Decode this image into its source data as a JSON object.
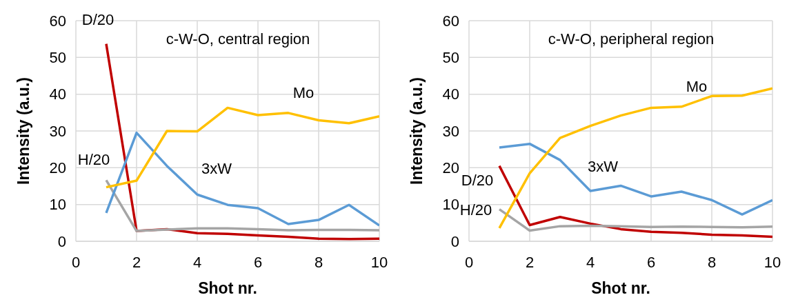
{
  "chart_data": [
    {
      "type": "line",
      "title": "c-W-O, central region",
      "xlabel": "Shot nr.",
      "ylabel": "Intensity (a.u.)",
      "x": [
        1,
        2,
        3,
        4,
        5,
        6,
        7,
        8,
        9,
        10
      ],
      "xlim": [
        0,
        10
      ],
      "xticks": [
        0,
        2,
        4,
        6,
        8,
        10
      ],
      "ylim": [
        0,
        60
      ],
      "yticks": [
        0,
        10,
        20,
        30,
        40,
        50,
        60
      ],
      "grid": true,
      "legend": false,
      "marker": "none",
      "line_style": "solid",
      "series": [
        {
          "name": "D/20",
          "color": "#c00000",
          "values": [
            53.7,
            2.8,
            3.3,
            2.2,
            2.0,
            1.6,
            1.2,
            0.7,
            0.6,
            0.7
          ]
        },
        {
          "name": "H/20",
          "color": "#a5a5a5",
          "values": [
            16.6,
            2.8,
            3.2,
            3.5,
            3.5,
            3.3,
            3.0,
            3.1,
            3.1,
            3.0
          ]
        },
        {
          "name": "3xW",
          "color": "#5b9bd5",
          "values": [
            7.7,
            29.5,
            20.5,
            12.7,
            9.9,
            9.0,
            4.7,
            5.8,
            9.9,
            4.3
          ]
        },
        {
          "name": "Mo",
          "color": "#ffc000",
          "values": [
            14.7,
            16.5,
            30.0,
            29.9,
            36.3,
            34.3,
            34.9,
            32.9,
            32.1,
            34.0
          ]
        }
      ]
    },
    {
      "type": "line",
      "title": "c-W-O, peripheral region",
      "xlabel": "Shot nr.",
      "ylabel": "Intensity (a.u.)",
      "x": [
        1,
        2,
        3,
        4,
        5,
        6,
        7,
        8,
        9,
        10
      ],
      "xlim": [
        0,
        10
      ],
      "xticks": [
        0,
        2,
        4,
        6,
        8,
        10
      ],
      "ylim": [
        0,
        60
      ],
      "yticks": [
        0,
        10,
        20,
        30,
        40,
        50,
        60
      ],
      "grid": true,
      "legend": false,
      "marker": "none",
      "line_style": "solid",
      "series": [
        {
          "name": "D/20",
          "color": "#c00000",
          "values": [
            20.5,
            4.4,
            6.6,
            4.8,
            3.3,
            2.6,
            2.3,
            1.8,
            1.6,
            1.2
          ]
        },
        {
          "name": "H/20",
          "color": "#a5a5a5",
          "values": [
            8.7,
            2.9,
            4.1,
            4.2,
            4.1,
            3.9,
            4.0,
            3.9,
            3.8,
            4.0
          ]
        },
        {
          "name": "3xW",
          "color": "#5b9bd5",
          "values": [
            25.5,
            26.5,
            22.1,
            13.7,
            15.1,
            12.2,
            13.5,
            11.2,
            7.3,
            11.2
          ]
        },
        {
          "name": "Mo",
          "color": "#ffc000",
          "values": [
            3.6,
            18.5,
            28.1,
            31.4,
            34.2,
            36.3,
            36.6,
            39.5,
            39.6,
            41.6
          ]
        }
      ]
    }
  ]
}
